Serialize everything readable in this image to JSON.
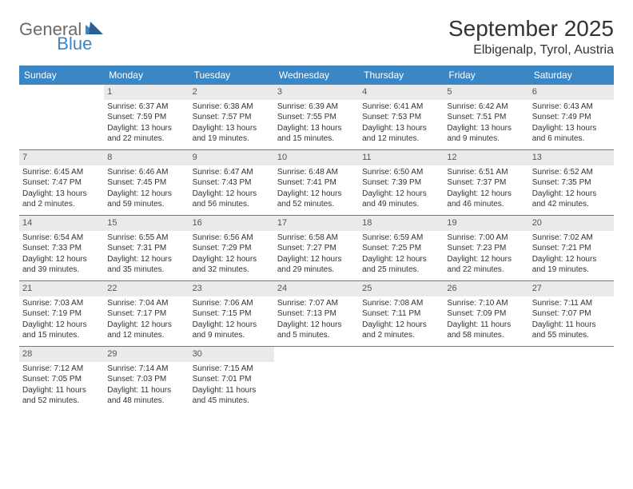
{
  "logo": {
    "part1": "General",
    "part2": "Blue"
  },
  "title": "September 2025",
  "location": "Elbigenalp, Tyrol, Austria",
  "colors": {
    "header_bg": "#3b86c5",
    "header_fg": "#ffffff",
    "daynum_bg": "#eaeaea",
    "logo_gray": "#6a6a6a",
    "logo_blue": "#3b86c5"
  },
  "weekdays": [
    "Sunday",
    "Monday",
    "Tuesday",
    "Wednesday",
    "Thursday",
    "Friday",
    "Saturday"
  ],
  "weeks": [
    [
      null,
      {
        "n": "1",
        "sr": "Sunrise: 6:37 AM",
        "ss": "Sunset: 7:59 PM",
        "dl": "Daylight: 13 hours and 22 minutes."
      },
      {
        "n": "2",
        "sr": "Sunrise: 6:38 AM",
        "ss": "Sunset: 7:57 PM",
        "dl": "Daylight: 13 hours and 19 minutes."
      },
      {
        "n": "3",
        "sr": "Sunrise: 6:39 AM",
        "ss": "Sunset: 7:55 PM",
        "dl": "Daylight: 13 hours and 15 minutes."
      },
      {
        "n": "4",
        "sr": "Sunrise: 6:41 AM",
        "ss": "Sunset: 7:53 PM",
        "dl": "Daylight: 13 hours and 12 minutes."
      },
      {
        "n": "5",
        "sr": "Sunrise: 6:42 AM",
        "ss": "Sunset: 7:51 PM",
        "dl": "Daylight: 13 hours and 9 minutes."
      },
      {
        "n": "6",
        "sr": "Sunrise: 6:43 AM",
        "ss": "Sunset: 7:49 PM",
        "dl": "Daylight: 13 hours and 6 minutes."
      }
    ],
    [
      {
        "n": "7",
        "sr": "Sunrise: 6:45 AM",
        "ss": "Sunset: 7:47 PM",
        "dl": "Daylight: 13 hours and 2 minutes."
      },
      {
        "n": "8",
        "sr": "Sunrise: 6:46 AM",
        "ss": "Sunset: 7:45 PM",
        "dl": "Daylight: 12 hours and 59 minutes."
      },
      {
        "n": "9",
        "sr": "Sunrise: 6:47 AM",
        "ss": "Sunset: 7:43 PM",
        "dl": "Daylight: 12 hours and 56 minutes."
      },
      {
        "n": "10",
        "sr": "Sunrise: 6:48 AM",
        "ss": "Sunset: 7:41 PM",
        "dl": "Daylight: 12 hours and 52 minutes."
      },
      {
        "n": "11",
        "sr": "Sunrise: 6:50 AM",
        "ss": "Sunset: 7:39 PM",
        "dl": "Daylight: 12 hours and 49 minutes."
      },
      {
        "n": "12",
        "sr": "Sunrise: 6:51 AM",
        "ss": "Sunset: 7:37 PM",
        "dl": "Daylight: 12 hours and 46 minutes."
      },
      {
        "n": "13",
        "sr": "Sunrise: 6:52 AM",
        "ss": "Sunset: 7:35 PM",
        "dl": "Daylight: 12 hours and 42 minutes."
      }
    ],
    [
      {
        "n": "14",
        "sr": "Sunrise: 6:54 AM",
        "ss": "Sunset: 7:33 PM",
        "dl": "Daylight: 12 hours and 39 minutes."
      },
      {
        "n": "15",
        "sr": "Sunrise: 6:55 AM",
        "ss": "Sunset: 7:31 PM",
        "dl": "Daylight: 12 hours and 35 minutes."
      },
      {
        "n": "16",
        "sr": "Sunrise: 6:56 AM",
        "ss": "Sunset: 7:29 PM",
        "dl": "Daylight: 12 hours and 32 minutes."
      },
      {
        "n": "17",
        "sr": "Sunrise: 6:58 AM",
        "ss": "Sunset: 7:27 PM",
        "dl": "Daylight: 12 hours and 29 minutes."
      },
      {
        "n": "18",
        "sr": "Sunrise: 6:59 AM",
        "ss": "Sunset: 7:25 PM",
        "dl": "Daylight: 12 hours and 25 minutes."
      },
      {
        "n": "19",
        "sr": "Sunrise: 7:00 AM",
        "ss": "Sunset: 7:23 PM",
        "dl": "Daylight: 12 hours and 22 minutes."
      },
      {
        "n": "20",
        "sr": "Sunrise: 7:02 AM",
        "ss": "Sunset: 7:21 PM",
        "dl": "Daylight: 12 hours and 19 minutes."
      }
    ],
    [
      {
        "n": "21",
        "sr": "Sunrise: 7:03 AM",
        "ss": "Sunset: 7:19 PM",
        "dl": "Daylight: 12 hours and 15 minutes."
      },
      {
        "n": "22",
        "sr": "Sunrise: 7:04 AM",
        "ss": "Sunset: 7:17 PM",
        "dl": "Daylight: 12 hours and 12 minutes."
      },
      {
        "n": "23",
        "sr": "Sunrise: 7:06 AM",
        "ss": "Sunset: 7:15 PM",
        "dl": "Daylight: 12 hours and 9 minutes."
      },
      {
        "n": "24",
        "sr": "Sunrise: 7:07 AM",
        "ss": "Sunset: 7:13 PM",
        "dl": "Daylight: 12 hours and 5 minutes."
      },
      {
        "n": "25",
        "sr": "Sunrise: 7:08 AM",
        "ss": "Sunset: 7:11 PM",
        "dl": "Daylight: 12 hours and 2 minutes."
      },
      {
        "n": "26",
        "sr": "Sunrise: 7:10 AM",
        "ss": "Sunset: 7:09 PM",
        "dl": "Daylight: 11 hours and 58 minutes."
      },
      {
        "n": "27",
        "sr": "Sunrise: 7:11 AM",
        "ss": "Sunset: 7:07 PM",
        "dl": "Daylight: 11 hours and 55 minutes."
      }
    ],
    [
      {
        "n": "28",
        "sr": "Sunrise: 7:12 AM",
        "ss": "Sunset: 7:05 PM",
        "dl": "Daylight: 11 hours and 52 minutes."
      },
      {
        "n": "29",
        "sr": "Sunrise: 7:14 AM",
        "ss": "Sunset: 7:03 PM",
        "dl": "Daylight: 11 hours and 48 minutes."
      },
      {
        "n": "30",
        "sr": "Sunrise: 7:15 AM",
        "ss": "Sunset: 7:01 PM",
        "dl": "Daylight: 11 hours and 45 minutes."
      },
      null,
      null,
      null,
      null
    ]
  ]
}
